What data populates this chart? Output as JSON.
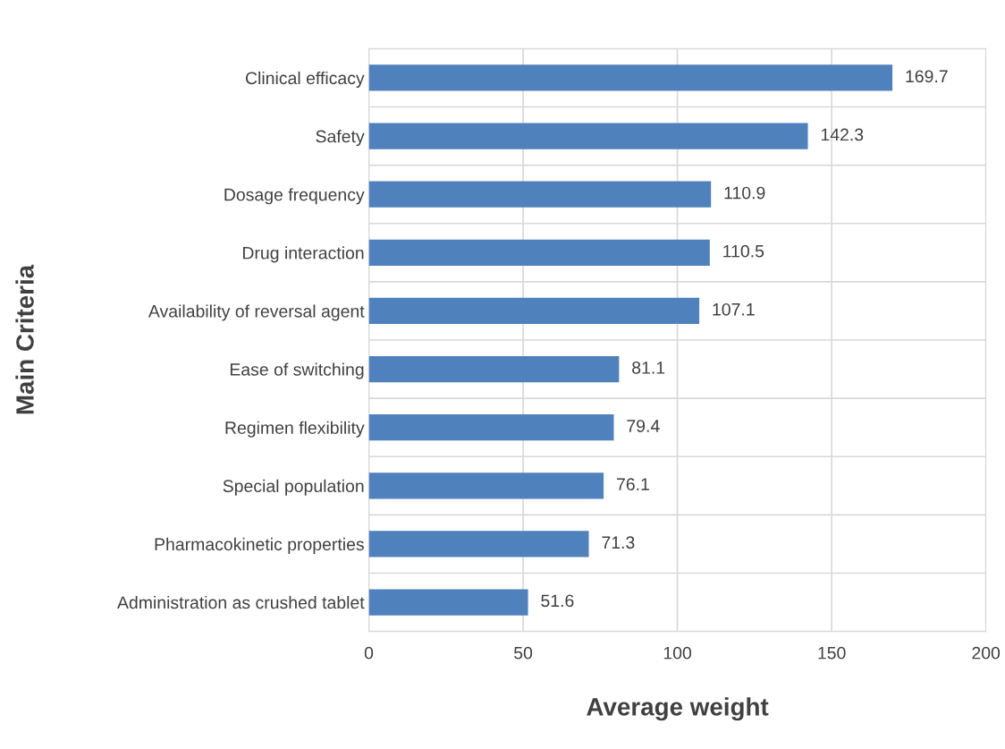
{
  "chart_data": {
    "type": "bar",
    "orientation": "horizontal",
    "xlabel": "Average weight",
    "ylabel": "Main Criteria",
    "categories": [
      "Clinical efficacy",
      "Safety",
      "Dosage frequency",
      "Drug interaction",
      "Availability of reversal agent",
      "Ease of switching",
      "Regimen flexibility",
      "Special population",
      "Pharmacokinetic properties",
      "Administration as crushed tablet"
    ],
    "values": [
      169.7,
      142.3,
      110.9,
      110.5,
      107.1,
      81.1,
      79.4,
      76.1,
      71.3,
      51.6
    ],
    "color": "#4f81bd",
    "xlim": [
      0,
      200
    ],
    "xticks": [
      0,
      50,
      100,
      150,
      200
    ],
    "grid": true,
    "data_labels": true
  }
}
